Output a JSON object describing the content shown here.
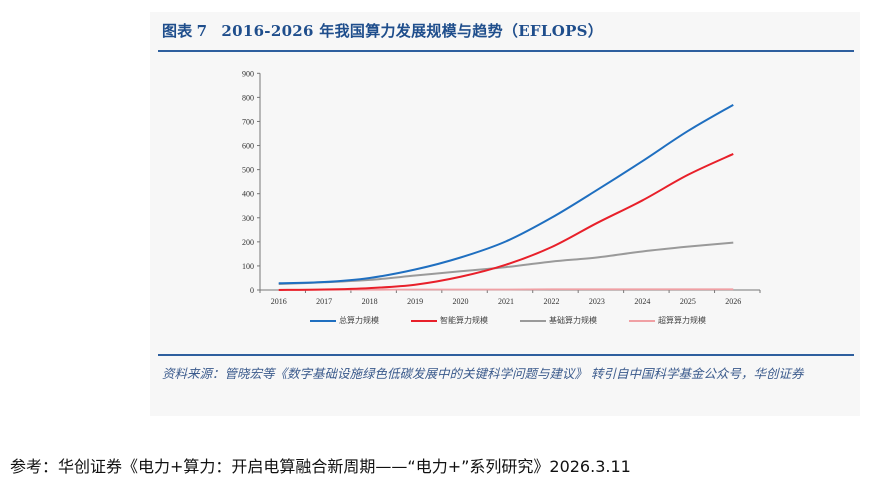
{
  "figure": {
    "label": "图表",
    "number": "7",
    "title": "2016-2026 年我国算力发展规模与趋势（EFLOPS）",
    "source": "资料来源：管晓宏等《数字基础设施绿色低碳发展中的关键科学问题与建议》 转引自中国科学基金公众号，华创证券"
  },
  "reference": "参考：华创证券《电力+算力：开启电算融合新周期——“电力+”系列研究》2026.3.11",
  "chart_data": {
    "type": "line",
    "title": "2016-2026 年我国算力发展规模与趋势（EFLOPS）",
    "xlabel": "",
    "ylabel": "",
    "x": [
      "2016",
      "2017",
      "2018",
      "2019",
      "2020",
      "2021",
      "2022",
      "2023",
      "2024",
      "2025",
      "2026"
    ],
    "ylim": [
      0,
      900
    ],
    "yticks": [
      0,
      100,
      200,
      300,
      400,
      500,
      600,
      700,
      800,
      900
    ],
    "grid": false,
    "legend_position": "bottom",
    "series": [
      {
        "name": "总算力规模",
        "color": "#1f6fc0",
        "values": [
          28,
          33,
          50,
          85,
          135,
          202,
          300,
          415,
          535,
          660,
          769
        ]
      },
      {
        "name": "智能算力规模",
        "color": "#e8202a",
        "values": [
          0,
          2,
          8,
          22,
          55,
          105,
          178,
          278,
          372,
          478,
          565
        ]
      },
      {
        "name": "基础算力规模",
        "color": "#9a9a9a",
        "values": [
          25,
          32,
          42,
          60,
          78,
          95,
          118,
          135,
          160,
          180,
          197
        ]
      },
      {
        "name": "超算算力规模",
        "color": "#f0a0a4",
        "values": [
          1,
          1,
          1,
          2,
          2,
          2,
          3,
          3,
          3,
          3,
          3
        ]
      }
    ]
  }
}
